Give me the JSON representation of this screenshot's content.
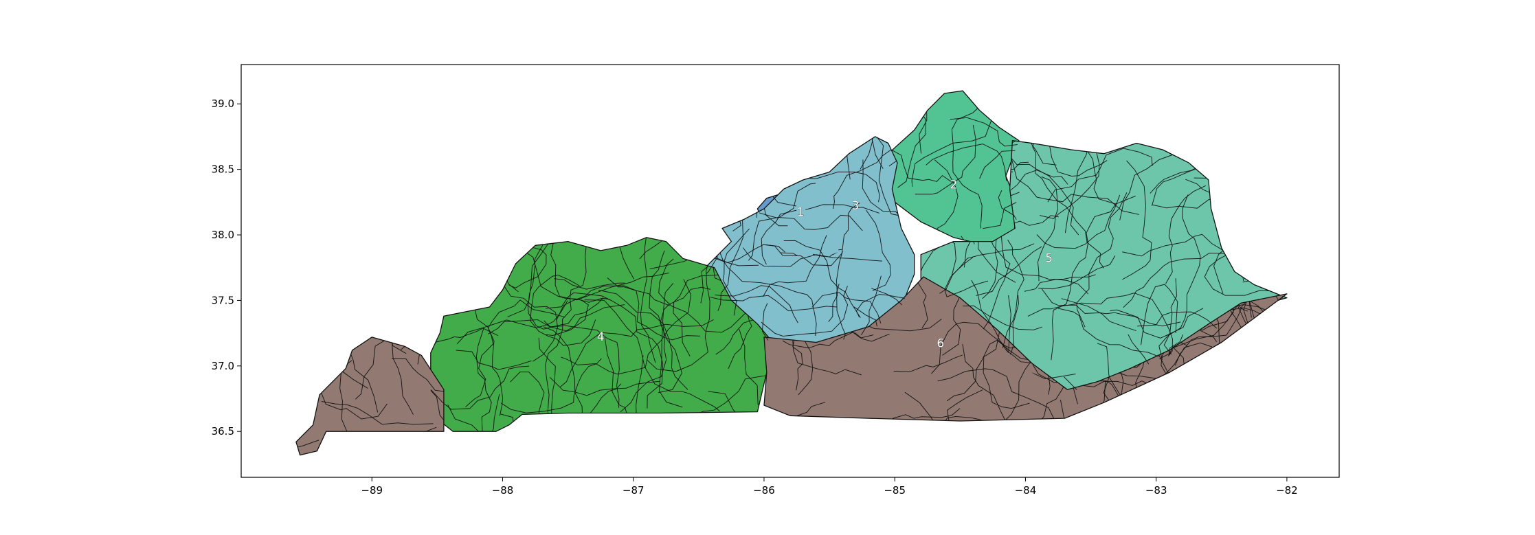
{
  "chart_data": {
    "type": "choropleth-map",
    "title": "",
    "xlabel": "",
    "ylabel": "",
    "xlim": [
      -90.0,
      -81.6
    ],
    "ylim": [
      36.15,
      39.3
    ],
    "xticks": [
      -89,
      -88,
      -87,
      -86,
      -85,
      -84,
      -83,
      -82
    ],
    "xtick_labels": [
      "−89",
      "−88",
      "−87",
      "−86",
      "−85",
      "−84",
      "−83",
      "−82"
    ],
    "yticks": [
      36.5,
      37.0,
      37.5,
      38.0,
      38.5,
      39.0
    ],
    "ytick_labels": [
      "36.5",
      "37.0",
      "37.5",
      "38.0",
      "38.5",
      "39.0"
    ],
    "grid": false,
    "districts": [
      {
        "label": "1",
        "color": "#6699cc",
        "label_pos": [
          -85.72,
          38.17
        ],
        "polygon": [
          [
            -85.98,
            38.28
          ],
          [
            -85.85,
            38.32
          ],
          [
            -85.72,
            38.38
          ],
          [
            -85.62,
            38.42
          ],
          [
            -85.55,
            38.3
          ],
          [
            -85.58,
            38.18
          ],
          [
            -85.45,
            38.05
          ],
          [
            -85.35,
            37.92
          ],
          [
            -85.5,
            37.83
          ],
          [
            -85.72,
            37.85
          ],
          [
            -85.85,
            37.82
          ],
          [
            -85.92,
            37.95
          ],
          [
            -86.0,
            38.08
          ],
          [
            -86.05,
            38.2
          ]
        ]
      },
      {
        "label": "2",
        "color": "#52c393",
        "label_pos": [
          -84.55,
          38.38
        ],
        "polygon": [
          [
            -85.05,
            38.62
          ],
          [
            -84.85,
            38.8
          ],
          [
            -84.75,
            38.95
          ],
          [
            -84.62,
            39.08
          ],
          [
            -84.48,
            39.1
          ],
          [
            -84.35,
            38.95
          ],
          [
            -84.2,
            38.82
          ],
          [
            -84.05,
            38.72
          ],
          [
            -84.15,
            38.45
          ],
          [
            -84.05,
            38.2
          ],
          [
            -84.1,
            37.98
          ],
          [
            -84.3,
            37.92
          ],
          [
            -84.55,
            37.98
          ],
          [
            -84.8,
            38.1
          ],
          [
            -85.0,
            38.25
          ],
          [
            -85.1,
            38.45
          ]
        ]
      },
      {
        "label": "3",
        "color": "#82bfcd",
        "label_pos": [
          -85.3,
          38.22
        ],
        "polygon": [
          [
            -86.32,
            38.05
          ],
          [
            -86.25,
            37.95
          ],
          [
            -86.45,
            37.75
          ],
          [
            -86.4,
            37.45
          ],
          [
            -86.0,
            37.2
          ],
          [
            -85.6,
            37.15
          ],
          [
            -85.2,
            37.25
          ],
          [
            -84.95,
            37.45
          ],
          [
            -84.85,
            37.7
          ],
          [
            -84.85,
            37.85
          ],
          [
            -84.95,
            38.05
          ],
          [
            -85.02,
            38.35
          ],
          [
            -84.98,
            38.55
          ],
          [
            -85.05,
            38.7
          ],
          [
            -85.15,
            38.75
          ],
          [
            -85.35,
            38.62
          ],
          [
            -85.5,
            38.48
          ],
          [
            -85.7,
            38.42
          ],
          [
            -85.85,
            38.35
          ],
          [
            -86.0,
            38.2
          ],
          [
            -86.15,
            38.12
          ]
        ]
      },
      {
        "label": "4",
        "color": "#43ac4a",
        "label_pos": [
          -87.25,
          37.22
        ],
        "polygon": [
          [
            -88.55,
            37.1
          ],
          [
            -88.48,
            37.25
          ],
          [
            -88.45,
            37.38
          ],
          [
            -88.1,
            37.45
          ],
          [
            -88.0,
            37.58
          ],
          [
            -87.9,
            37.78
          ],
          [
            -87.75,
            37.92
          ],
          [
            -87.5,
            37.95
          ],
          [
            -87.25,
            37.88
          ],
          [
            -87.05,
            37.92
          ],
          [
            -86.9,
            37.98
          ],
          [
            -86.75,
            37.95
          ],
          [
            -86.62,
            37.82
          ],
          [
            -86.38,
            37.75
          ],
          [
            -86.25,
            37.5
          ],
          [
            -86.05,
            37.32
          ],
          [
            -85.95,
            37.2
          ],
          [
            -85.98,
            36.95
          ],
          [
            -86.05,
            36.65
          ],
          [
            -86.8,
            36.64
          ],
          [
            -87.5,
            36.64
          ],
          [
            -87.85,
            36.63
          ],
          [
            -87.95,
            36.55
          ],
          [
            -88.05,
            36.5
          ],
          [
            -88.38,
            36.5
          ],
          [
            -88.48,
            36.58
          ],
          [
            -88.55,
            36.8
          ]
        ]
      },
      {
        "label": "5",
        "color": "#6ec6aa",
        "label_pos": [
          -83.82,
          37.82
        ],
        "polygon": [
          [
            -84.1,
            38.72
          ],
          [
            -83.95,
            38.7
          ],
          [
            -83.65,
            38.65
          ],
          [
            -83.4,
            38.62
          ],
          [
            -83.15,
            38.7
          ],
          [
            -82.95,
            38.65
          ],
          [
            -82.75,
            38.55
          ],
          [
            -82.6,
            38.42
          ],
          [
            -82.58,
            38.2
          ],
          [
            -82.5,
            37.9
          ],
          [
            -82.4,
            37.72
          ],
          [
            -82.25,
            37.62
          ],
          [
            -82.0,
            37.52
          ],
          [
            -82.25,
            37.45
          ],
          [
            -82.6,
            37.25
          ],
          [
            -82.95,
            37.05
          ],
          [
            -83.25,
            36.95
          ],
          [
            -83.45,
            36.88
          ],
          [
            -83.7,
            36.78
          ],
          [
            -83.95,
            36.95
          ],
          [
            -84.25,
            37.2
          ],
          [
            -84.5,
            37.48
          ],
          [
            -84.8,
            37.62
          ],
          [
            -84.8,
            37.85
          ],
          [
            -84.55,
            37.95
          ],
          [
            -84.25,
            37.95
          ],
          [
            -84.08,
            38.05
          ],
          [
            -84.12,
            38.35
          ]
        ]
      },
      {
        "label": "6",
        "color": "#927a72",
        "label_pos": [
          -84.65,
          37.17
        ],
        "polygon": [
          [
            -86.0,
            37.22
          ],
          [
            -85.6,
            37.18
          ],
          [
            -85.2,
            37.3
          ],
          [
            -84.95,
            37.5
          ],
          [
            -84.78,
            37.68
          ],
          [
            -84.5,
            37.52
          ],
          [
            -84.22,
            37.28
          ],
          [
            -83.95,
            37.02
          ],
          [
            -83.68,
            36.82
          ],
          [
            -83.45,
            36.88
          ],
          [
            -83.2,
            36.98
          ],
          [
            -82.9,
            37.12
          ],
          [
            -82.6,
            37.32
          ],
          [
            -82.35,
            37.48
          ],
          [
            -82.0,
            37.55
          ],
          [
            -82.5,
            37.18
          ],
          [
            -82.9,
            36.95
          ],
          [
            -83.4,
            36.72
          ],
          [
            -83.7,
            36.6
          ],
          [
            -84.5,
            36.58
          ],
          [
            -85.2,
            36.6
          ],
          [
            -85.8,
            36.62
          ],
          [
            -86.0,
            36.7
          ],
          [
            -85.98,
            36.95
          ]
        ]
      },
      {
        "label": "",
        "color": "#927a72",
        "label_pos": null,
        "polygon": [
          [
            -89.52,
            36.48
          ],
          [
            -89.45,
            36.55
          ],
          [
            -89.4,
            36.78
          ],
          [
            -89.2,
            36.98
          ],
          [
            -89.15,
            37.12
          ],
          [
            -89.0,
            37.22
          ],
          [
            -88.75,
            37.15
          ],
          [
            -88.62,
            37.08
          ],
          [
            -88.45,
            36.82
          ],
          [
            -88.45,
            36.5
          ],
          [
            -88.95,
            36.5
          ],
          [
            -89.35,
            36.5
          ],
          [
            -89.42,
            36.35
          ],
          [
            -89.55,
            36.32
          ],
          [
            -89.58,
            36.42
          ]
        ]
      }
    ]
  }
}
